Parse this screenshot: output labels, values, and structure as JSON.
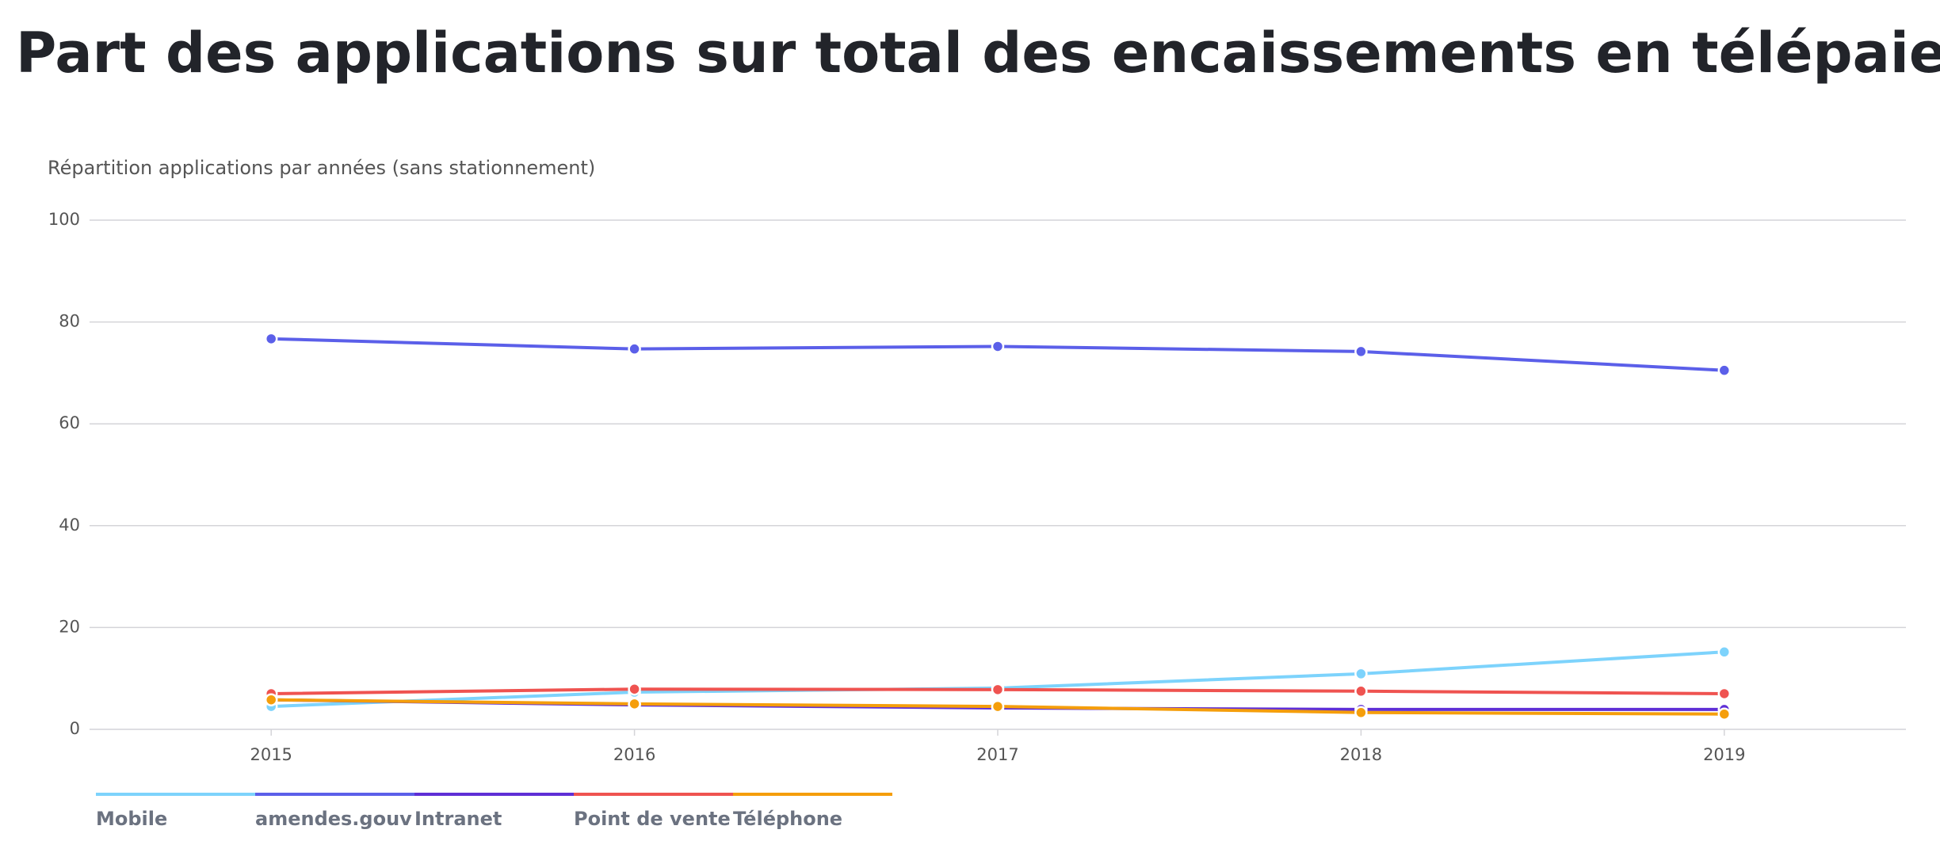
{
  "chart_data": {
    "type": "line",
    "title": "Part des applications sur total des encaissements en télépaiement",
    "subtitle": "Répartition applications par années (sans stationnement)",
    "categories": [
      "2015",
      "2016",
      "2017",
      "2018",
      "2019"
    ],
    "series": [
      {
        "name": "Mobile",
        "color": "#7dd3fc",
        "values": [
          4.5,
          7.3,
          8.1,
          10.9,
          15.2
        ]
      },
      {
        "name": "amendes.gouv",
        "color": "#5b5fe9",
        "values": [
          76.7,
          74.7,
          75.2,
          74.2,
          70.5
        ]
      },
      {
        "name": "Intranet",
        "color": "#5f2fd6",
        "values": [
          5.8,
          4.8,
          4.2,
          3.9,
          3.9
        ]
      },
      {
        "name": "Point de vente",
        "color": "#ef5350",
        "values": [
          7.0,
          7.9,
          7.8,
          7.5,
          7.0
        ]
      },
      {
        "name": "Téléphone",
        "color": "#f59e0b",
        "values": [
          5.8,
          5.0,
          4.5,
          3.3,
          3.0
        ]
      }
    ],
    "ylim": [
      0,
      100
    ],
    "yticks": [
      0,
      20,
      40,
      60,
      80,
      100
    ],
    "grid": true,
    "legend": "bottom-left"
  }
}
